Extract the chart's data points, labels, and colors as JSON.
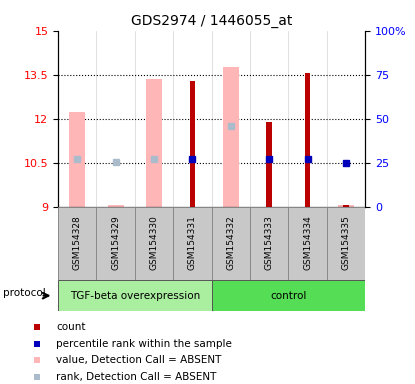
{
  "title": "GDS2974 / 1446055_at",
  "samples": [
    "GSM154328",
    "GSM154329",
    "GSM154330",
    "GSM154331",
    "GSM154332",
    "GSM154333",
    "GSM154334",
    "GSM154335"
  ],
  "ylim_left": [
    9,
    15
  ],
  "ylim_right": [
    0,
    100
  ],
  "yticks_left": [
    9,
    10.5,
    12,
    13.5,
    15
  ],
  "yticks_right": [
    0,
    25,
    50,
    75,
    100
  ],
  "ytick_labels_right": [
    "0",
    "25",
    "50",
    "75",
    "100%"
  ],
  "ytick_labels_left": [
    "9",
    "10.5",
    "12",
    "13.5",
    "15"
  ],
  "pink_bar_tops": [
    12.25,
    9.08,
    13.35,
    null,
    13.78,
    null,
    null,
    9.08
  ],
  "pink_bar_base": 9.0,
  "red_bar_tops": [
    null,
    null,
    null,
    13.3,
    null,
    11.9,
    13.55,
    9.08
  ],
  "red_bar_base": 9.0,
  "blue_square_vals": [
    null,
    null,
    null,
    10.63,
    null,
    10.63,
    10.63,
    10.5
  ],
  "light_blue_square_vals": [
    10.65,
    10.55,
    10.65,
    null,
    11.75,
    null,
    null,
    null
  ],
  "pink_bar_width": 0.42,
  "red_bar_width": 0.15,
  "pink_color": "#FFB6B6",
  "red_color": "#BB0000",
  "blue_color": "#0000BB",
  "light_blue_color": "#AABBCC",
  "grid_vals": [
    10.5,
    12.0,
    13.5
  ],
  "protocol_label": "protocol",
  "group_label_1": "TGF-beta overexpression",
  "group_label_2": "control",
  "group1_color": "#AAEEA0",
  "group2_color": "#55DD55",
  "legend_items": [
    [
      "#BB0000",
      "count"
    ],
    [
      "#0000BB",
      "percentile rank within the sample"
    ],
    [
      "#FFB6B6",
      "value, Detection Call = ABSENT"
    ],
    [
      "#AABBCC",
      "rank, Detection Call = ABSENT"
    ]
  ]
}
